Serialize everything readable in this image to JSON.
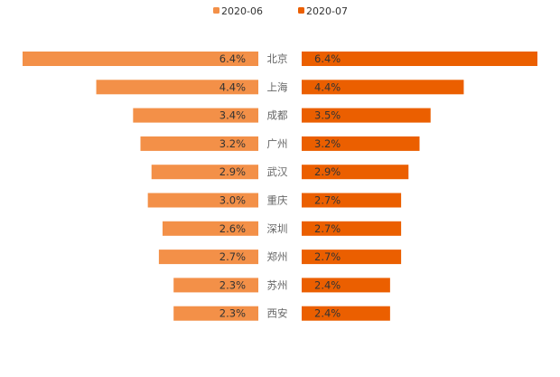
{
  "chart_data": {
    "type": "bar",
    "orientation": "horizontal-butterfly",
    "categories": [
      "北京",
      "上海",
      "成都",
      "广州",
      "武汉",
      "重庆",
      "深圳",
      "郑州",
      "苏州",
      "西安"
    ],
    "series": [
      {
        "name": "2020-06",
        "values": [
          6.4,
          4.4,
          3.4,
          3.2,
          2.9,
          3.0,
          2.6,
          2.7,
          2.3,
          2.3
        ],
        "labels": [
          "6.4%",
          "4.4%",
          "3.4%",
          "3.2%",
          "2.9%",
          "3.0%",
          "2.6%",
          "2.7%",
          "2.3%",
          "2.3%"
        ],
        "color": "#f39048"
      },
      {
        "name": "2020-07",
        "values": [
          6.4,
          4.4,
          3.5,
          3.2,
          2.9,
          2.7,
          2.7,
          2.7,
          2.4,
          2.4
        ],
        "labels": [
          "6.4%",
          "4.4%",
          "3.5%",
          "3.2%",
          "2.9%",
          "2.7%",
          "2.7%",
          "2.7%",
          "2.4%",
          "2.4%"
        ],
        "color": "#eb5f00"
      }
    ],
    "unit": "%",
    "legend_position": "top-center",
    "grid": false,
    "axis_visible": false
  }
}
